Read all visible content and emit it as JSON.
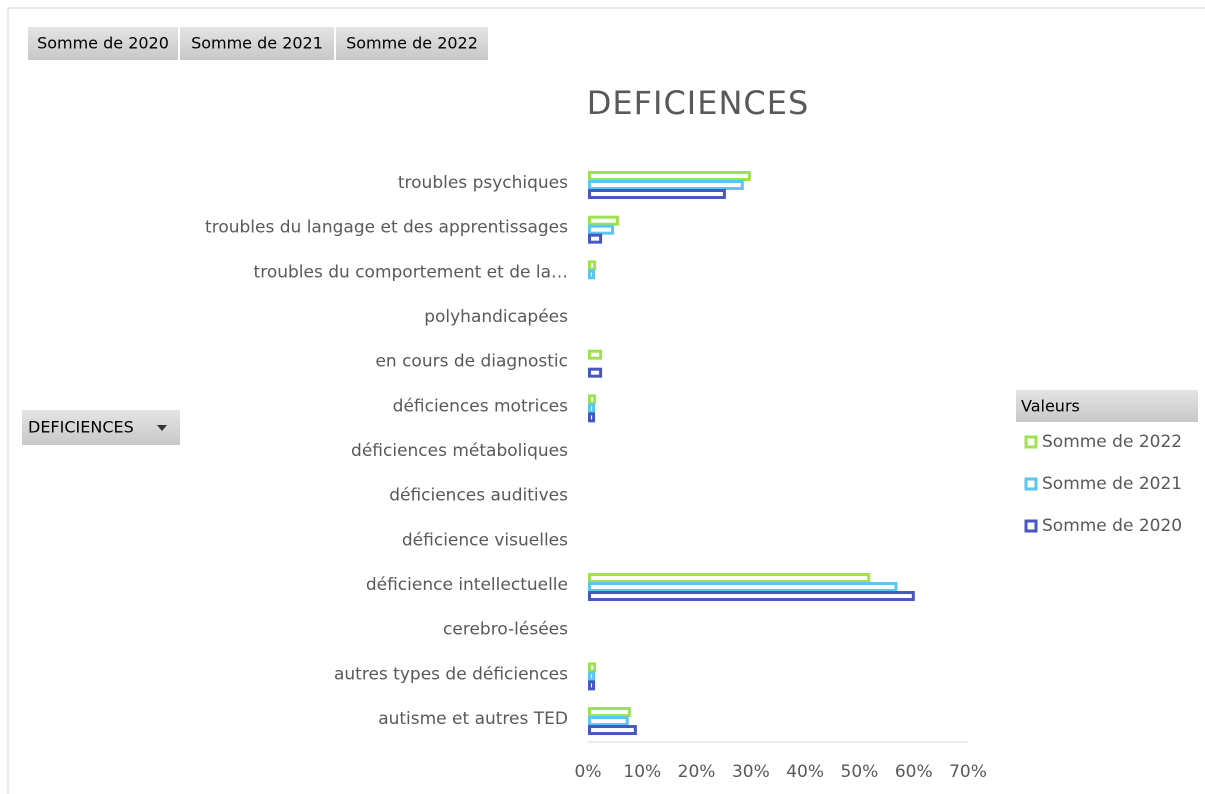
{
  "field_buttons": [
    "Somme de 2020",
    "Somme de 2021",
    "Somme de 2022"
  ],
  "axis_field": "DEFICIENCES",
  "chart_data": {
    "type": "bar",
    "orientation": "horizontal",
    "title": "DEFICIENCES",
    "categories": [
      "troubles psychiques",
      "troubles du langage et des apprentissages",
      "troubles du comportement et de la…",
      "polyhandicapées",
      "en cours de diagnostic",
      "déficiences motrices",
      "déficiences métaboliques",
      "déficiences auditives",
      "déficience visuelles",
      "déficience intellectuelle",
      "cerebro-lésées",
      "autres types de déficiences",
      "autisme et autres TED"
    ],
    "series": [
      {
        "name": "Somme de 2022",
        "color": "#9ee252",
        "values": [
          30,
          5.7,
          1.5,
          0,
          2.6,
          1.5,
          0,
          0,
          0,
          52,
          0,
          1.5,
          7.9
        ]
      },
      {
        "name": "Somme de 2021",
        "color": "#5bc6ee",
        "values": [
          28.7,
          4.8,
          1.3,
          0,
          0,
          1.3,
          0,
          0,
          0,
          57,
          0,
          1.3,
          7.5
        ]
      },
      {
        "name": "Somme de 2020",
        "color": "#4757c0",
        "values": [
          25.4,
          2.6,
          0,
          0,
          2.6,
          1.3,
          0,
          0,
          0,
          60.2,
          0,
          1.3,
          9
        ]
      }
    ],
    "xlim": [
      0,
      70
    ],
    "xticks": [
      {
        "value": 0,
        "label": "0%"
      },
      {
        "value": 10,
        "label": "10%"
      },
      {
        "value": 20,
        "label": "20%"
      },
      {
        "value": 30,
        "label": "30%"
      },
      {
        "value": 40,
        "label": "40%"
      },
      {
        "value": 50,
        "label": "50%"
      },
      {
        "value": 60,
        "label": "60%"
      },
      {
        "value": 70,
        "label": "70%"
      }
    ],
    "legend_title": "Valeurs",
    "legend_position": "right",
    "grid": false
  }
}
